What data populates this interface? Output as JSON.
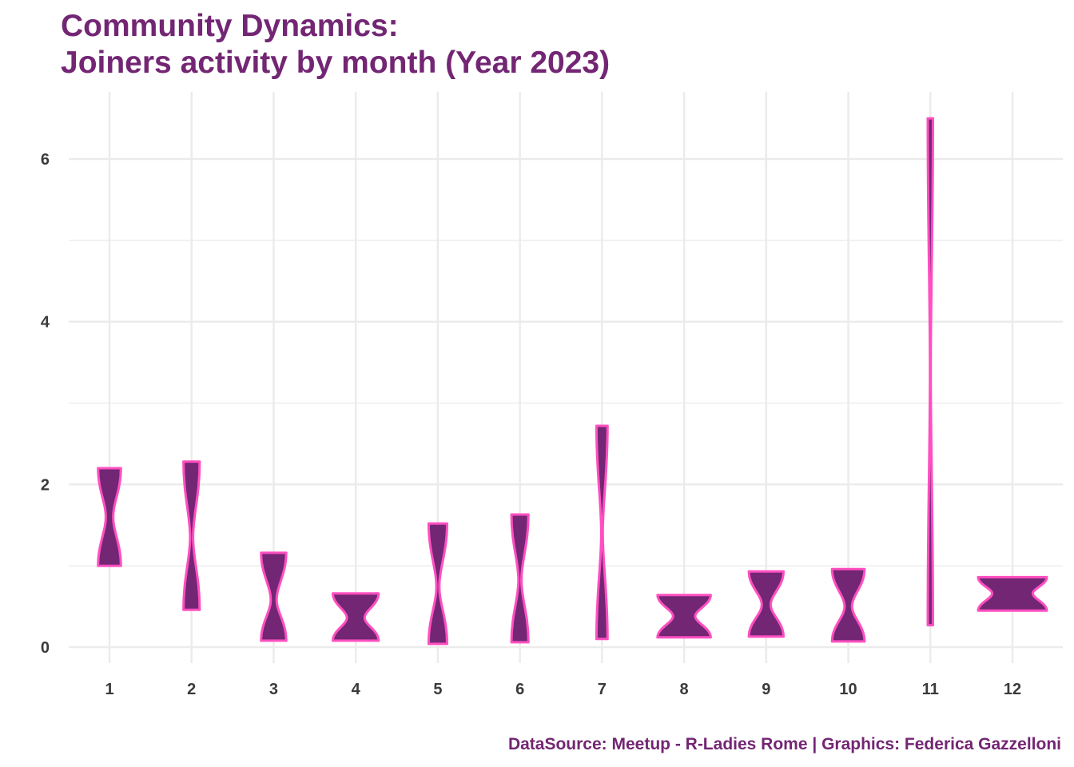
{
  "chart_data": {
    "type": "violin",
    "title": [
      "Community Dynamics:",
      "Joiners activity by month (Year 2023)"
    ],
    "caption": "DataSource: Meetup - R-Ladies Rome | Graphics: Federica Gazzelloni",
    "xlabel": "",
    "ylabel": "",
    "categories": [
      "1",
      "2",
      "3",
      "4",
      "5",
      "6",
      "7",
      "8",
      "9",
      "10",
      "11",
      "12"
    ],
    "ylim": [
      -0.2,
      6.7
    ],
    "y_ticks": [
      0,
      2,
      4,
      6
    ],
    "grid": true,
    "fill_color": "#732673",
    "outline_color": "#ff4fc1",
    "violins": [
      {
        "category": "1",
        "min": 1.0,
        "max": 2.2,
        "waist": 1.6,
        "maxw": 0.31,
        "minw": 0.1
      },
      {
        "category": "2",
        "min": 0.46,
        "max": 2.28,
        "waist": 1.35,
        "maxw": 0.22,
        "minw": 0.04
      },
      {
        "category": "3",
        "min": 0.08,
        "max": 1.16,
        "waist": 0.58,
        "maxw": 0.34,
        "minw": 0.08
      },
      {
        "category": "4",
        "min": 0.08,
        "max": 0.66,
        "waist": 0.36,
        "maxw": 0.62,
        "minw": 0.24
      },
      {
        "category": "5",
        "min": 0.04,
        "max": 1.52,
        "waist": 0.74,
        "maxw": 0.25,
        "minw": 0.04
      },
      {
        "category": "6",
        "min": 0.06,
        "max": 1.63,
        "waist": 0.82,
        "maxw": 0.23,
        "minw": 0.04
      },
      {
        "category": "7",
        "min": 0.1,
        "max": 2.72,
        "waist": 1.4,
        "maxw": 0.15,
        "minw": 0.02
      },
      {
        "category": "8",
        "min": 0.12,
        "max": 0.64,
        "waist": 0.38,
        "maxw": 0.72,
        "minw": 0.3
      },
      {
        "category": "9",
        "min": 0.13,
        "max": 0.93,
        "waist": 0.52,
        "maxw": 0.47,
        "minw": 0.12
      },
      {
        "category": "10",
        "min": 0.07,
        "max": 0.96,
        "waist": 0.5,
        "maxw": 0.44,
        "minw": 0.1
      },
      {
        "category": "11",
        "min": 0.27,
        "max": 6.5,
        "waist": 3.4,
        "maxw": 0.07,
        "minw": 0.01
      },
      {
        "category": "12",
        "min": 0.45,
        "max": 0.86,
        "waist": 0.66,
        "maxw": 0.93,
        "minw": 0.55
      }
    ]
  }
}
